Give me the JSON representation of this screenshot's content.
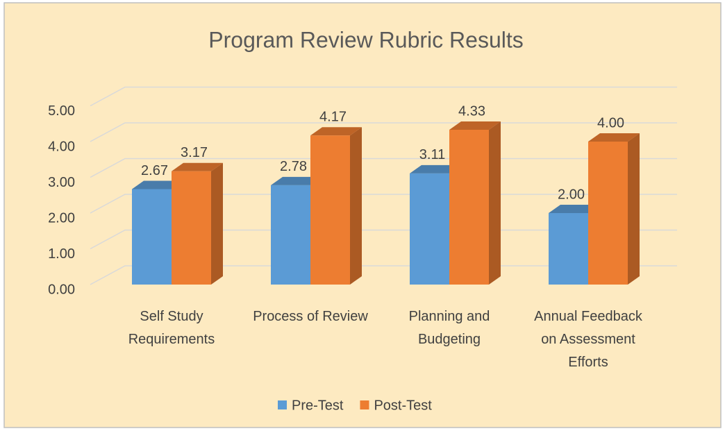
{
  "chart_data": {
    "type": "bar3d",
    "title": "Program Review Rubric Results",
    "categories": [
      "Self Study Requirements",
      "Process of Review",
      "Planning and Budgeting",
      "Annual Feedback on Assessment Efforts"
    ],
    "series": [
      {
        "name": "Pre-Test",
        "color": "#5b9bd5",
        "values": [
          2.67,
          2.78,
          3.11,
          2.0
        ],
        "value_labels": [
          "2.67",
          "2.78",
          "3.11",
          "2.00"
        ]
      },
      {
        "name": "Post-Test",
        "color": "#ed7d31",
        "values": [
          3.17,
          4.17,
          4.33,
          4.0
        ],
        "value_labels": [
          "3.17",
          "4.17",
          "4.33",
          "4.00"
        ]
      }
    ],
    "ylim": [
      0,
      5
    ],
    "yticks": [
      {
        "value": 0,
        "label": "0.00"
      },
      {
        "value": 1,
        "label": "1.00"
      },
      {
        "value": 2,
        "label": "2.00"
      },
      {
        "value": 3,
        "label": "3.00"
      },
      {
        "value": 4,
        "label": "4.00"
      },
      {
        "value": 5,
        "label": "5.00"
      }
    ],
    "grid": true,
    "legend": "bottom"
  }
}
